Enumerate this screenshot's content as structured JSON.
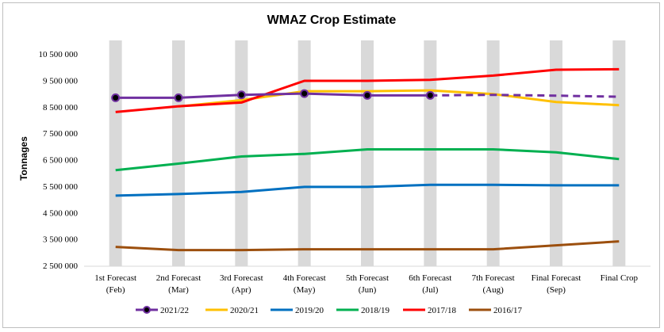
{
  "chart_data": {
    "type": "line",
    "title": "WMAZ Crop Estimate",
    "xlabel": "",
    "ylabel": "Tonnages",
    "ylim": [
      2500000,
      10500000
    ],
    "yticks": [
      2500000,
      3500000,
      4500000,
      5500000,
      6500000,
      7500000,
      8500000,
      9500000,
      10500000
    ],
    "ytick_labels": [
      "2 500 000",
      "3 500 000",
      "4 500 000",
      "5 500 000",
      "6 500 000",
      "7 500 000",
      "8 500 000",
      "9 500 000",
      "10 500 000"
    ],
    "categories": [
      [
        "1st Forecast",
        "(Feb)"
      ],
      [
        "2nd Forecast",
        "(Mar)"
      ],
      [
        "3rd Forecast",
        "(Apr)"
      ],
      [
        "4th Forecast",
        "(May)"
      ],
      [
        "5th Forecast",
        "(Jun)"
      ],
      [
        "6th Forecast",
        "(Jul)"
      ],
      [
        "7th Forecast",
        "(Aug)"
      ],
      [
        "Final Forecast",
        "(Sep)"
      ],
      [
        "Final Crop",
        ""
      ]
    ],
    "grid": "vertical shaded bands",
    "legend_position": "bottom",
    "series": [
      {
        "name": "2021/22",
        "color": "#7030a0",
        "markers": true,
        "values": [
          8840000,
          8840000,
          8950000,
          9000000,
          8930000,
          8930000,
          null,
          null,
          null
        ],
        "projected": [
          null,
          null,
          null,
          null,
          null,
          8930000,
          8950000,
          8920000,
          8880000
        ]
      },
      {
        "name": "2020/21",
        "color": "#ffc000",
        "values": [
          null,
          8510000,
          8750000,
          9090000,
          9090000,
          9120000,
          8980000,
          8680000,
          8560000
        ]
      },
      {
        "name": "2019/20",
        "color": "#0070c0",
        "values": [
          5140000,
          5200000,
          5280000,
          5470000,
          5470000,
          5550000,
          5550000,
          5530000,
          5530000
        ]
      },
      {
        "name": "2018/19",
        "color": "#00b050",
        "values": [
          6100000,
          6350000,
          6620000,
          6720000,
          6890000,
          6890000,
          6890000,
          6780000,
          6520000
        ]
      },
      {
        "name": "2017/18",
        "color": "#ff0000",
        "values": [
          8300000,
          8520000,
          8660000,
          9480000,
          9480000,
          9520000,
          9680000,
          9900000,
          9920000
        ]
      },
      {
        "name": "2016/17",
        "color": "#9c4f0e",
        "values": [
          3200000,
          3080000,
          3080000,
          3110000,
          3110000,
          3110000,
          3110000,
          3260000,
          3410000
        ]
      }
    ]
  }
}
